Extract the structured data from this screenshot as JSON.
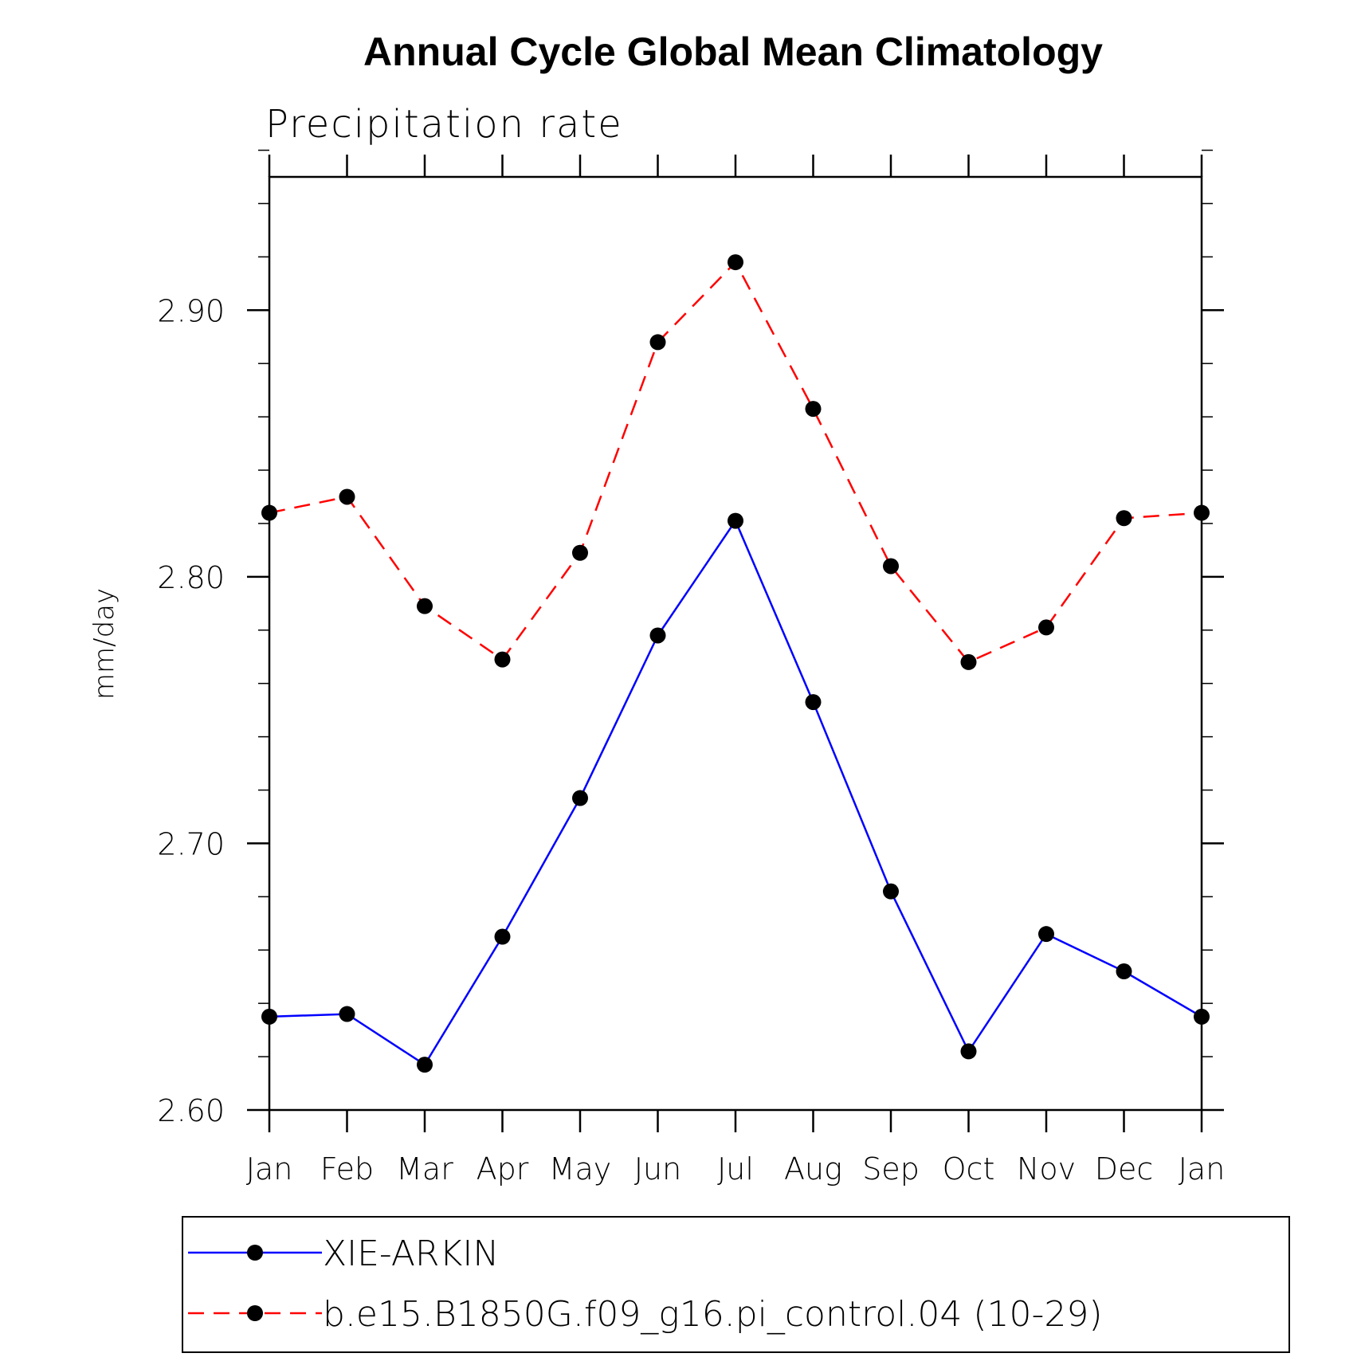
{
  "chart_data": {
    "type": "line",
    "title": "Annual Cycle Global Mean Climatology",
    "subtitle": "Precipitation rate",
    "xlabel": "",
    "ylabel": "mm/day",
    "categories": [
      "Jan",
      "Feb",
      "Mar",
      "Apr",
      "May",
      "Jun",
      "Jul",
      "Aug",
      "Sep",
      "Oct",
      "Nov",
      "Dec",
      "Jan"
    ],
    "ylim": [
      2.6,
      2.95
    ],
    "y_major_ticks": [
      2.6,
      2.7,
      2.8,
      2.9
    ],
    "y_tick_labels": [
      "2.60",
      "2.70",
      "2.80",
      "2.90"
    ],
    "y_minor_step": 0.02,
    "grid": false,
    "legend_position": "bottom",
    "series": [
      {
        "name": "XIE-ARKIN",
        "color": "#0000ff",
        "line_style": "solid",
        "marker": "filled-circle",
        "values": [
          2.635,
          2.636,
          2.617,
          2.665,
          2.717,
          2.778,
          2.821,
          2.753,
          2.682,
          2.622,
          2.666,
          2.652,
          2.635
        ]
      },
      {
        "name": "b.e15.B1850G.f09_g16.pi_control.04 (10-29)",
        "color": "#ff0000",
        "line_style": "dashed",
        "marker": "filled-circle",
        "values": [
          2.824,
          2.83,
          2.789,
          2.769,
          2.809,
          2.888,
          2.918,
          2.863,
          2.804,
          2.768,
          2.781,
          2.822,
          2.824
        ]
      }
    ]
  }
}
